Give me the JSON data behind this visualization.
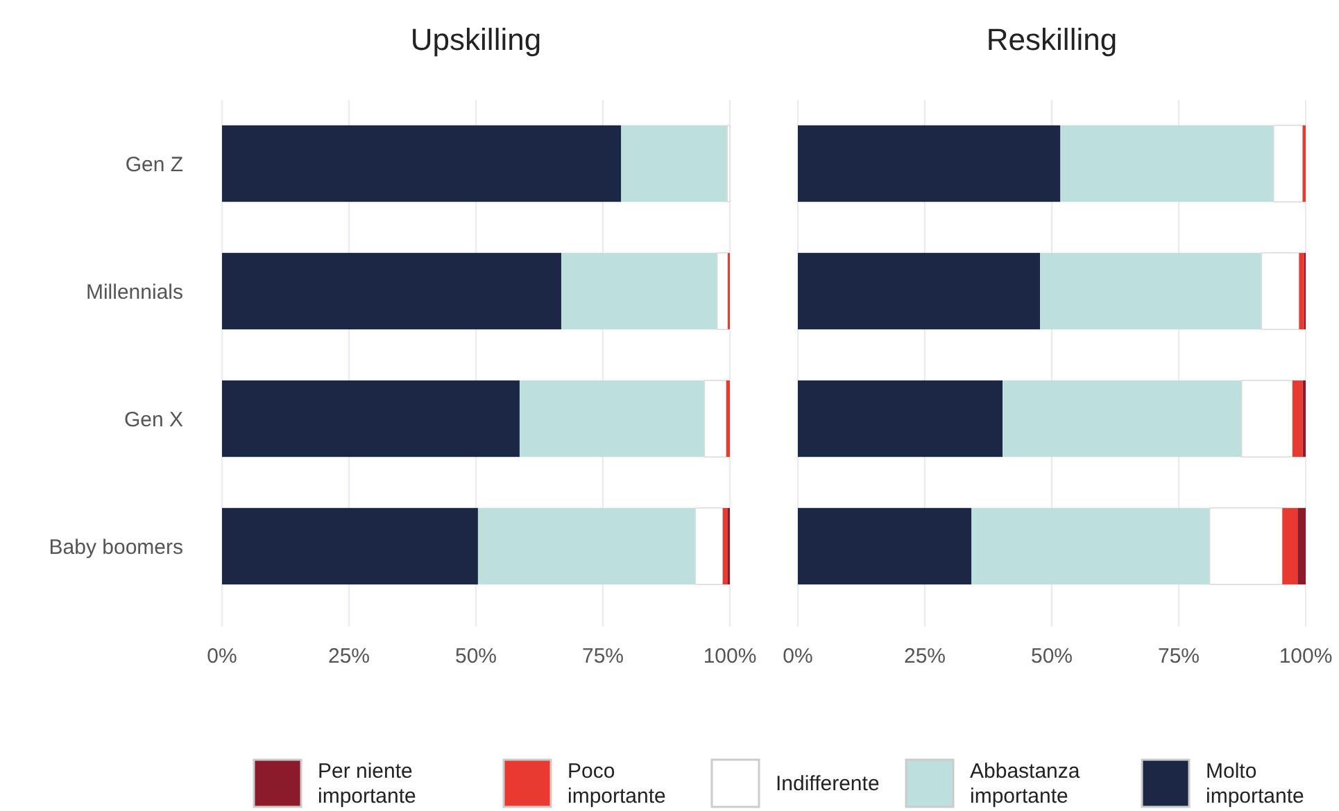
{
  "chart_data": [
    {
      "type": "bar",
      "title": "Upskilling",
      "orientation": "horizontal",
      "stacked": true,
      "categories": [
        "Gen Z",
        "Millennials",
        "Gen X",
        "Baby boomers"
      ],
      "xlim": [
        0,
        100
      ],
      "xticks": [
        {
          "value": 0,
          "label": "0%"
        },
        {
          "value": 25,
          "label": "25%"
        },
        {
          "value": 50,
          "label": "50%"
        },
        {
          "value": 75,
          "label": "75%"
        },
        {
          "value": 100,
          "label": "100%"
        }
      ],
      "grid": "x",
      "legend": "bottom",
      "series": [
        {
          "name": "Molto importante",
          "color": "#1b2745",
          "values": [
            78.6,
            66.8,
            58.6,
            50.4
          ]
        },
        {
          "name": "Abbastanza importante",
          "color": "#bde0dc",
          "values": [
            20.9,
            30.7,
            36.4,
            42.8
          ]
        },
        {
          "name": "Indifferente",
          "color": "#ffffff",
          "values": [
            0.5,
            2.1,
            4.3,
            5.4
          ]
        },
        {
          "name": "Poco importante",
          "color": "#e83a30",
          "values": [
            0,
            0.4,
            0.7,
            0.9
          ]
        },
        {
          "name": "Per niente importante",
          "color": "#8b1a2a",
          "values": [
            0,
            0,
            0,
            0.5
          ]
        }
      ]
    },
    {
      "type": "bar",
      "title": "Reskilling",
      "orientation": "horizontal",
      "stacked": true,
      "categories": [
        "Gen Z",
        "Millennials",
        "Gen X",
        "Baby boomers"
      ],
      "tick_labels": "x",
      "xlim": [
        0,
        100
      ],
      "xticks": [
        {
          "value": 0,
          "label": "0%"
        },
        {
          "value": 25,
          "label": "25%"
        },
        {
          "value": 50,
          "label": "50%"
        },
        {
          "value": 75,
          "label": "75%"
        },
        {
          "value": 100,
          "label": "100%"
        }
      ],
      "grid": "x",
      "legend": "bottom",
      "series": [
        {
          "name": "Molto importante",
          "color": "#1b2745",
          "values": [
            51.7,
            47.7,
            40.3,
            34.2
          ]
        },
        {
          "name": "Abbastanza importante",
          "color": "#bde0dc",
          "values": [
            42.0,
            43.6,
            47.1,
            46.9
          ]
        },
        {
          "name": "Indifferente",
          "color": "#ffffff",
          "values": [
            5.7,
            7.4,
            10.0,
            14.3
          ]
        },
        {
          "name": "Poco importante",
          "color": "#e83a30",
          "values": [
            0.6,
            1.0,
            2.0,
            3.0
          ]
        },
        {
          "name": "Per niente importante",
          "color": "#8b1a2a",
          "values": [
            0,
            0.3,
            0.6,
            1.6
          ]
        }
      ]
    }
  ]
}
